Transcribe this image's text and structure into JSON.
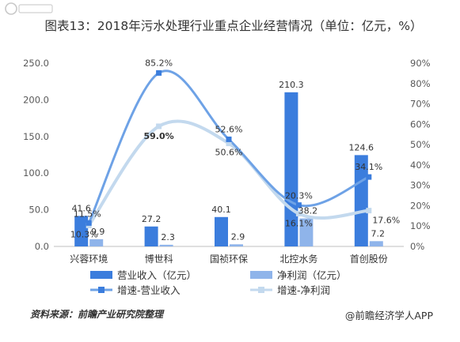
{
  "title": "图表13：2018年污水处理行业重点企业经营情况（单位：亿元，%）",
  "source": "资料来源：前瞻产业研究院整理",
  "brand": "@前瞻经济学人APP",
  "colors": {
    "revenue_bar": "#3b7ddd",
    "profit_bar": "#8fb4ea",
    "revenue_growth": "#6ea2e6",
    "profit_growth": "#c3d9ee"
  },
  "chart_data": {
    "type": "bar",
    "title": "图表13：2018年污水处理行业重点企业经营情况（单位：亿元，%）",
    "categories": [
      "兴蓉环境",
      "博世科",
      "国祯环保",
      "北控水务",
      "首创股份"
    ],
    "ylim": [
      0,
      250
    ],
    "y_ticks": [
      "0.0",
      "50.0",
      "100.0",
      "150.0",
      "200.0",
      "250.0"
    ],
    "y2lim": [
      0,
      90
    ],
    "y2_ticks": [
      "0%",
      "10%",
      "20%",
      "30%",
      "40%",
      "50%",
      "60%",
      "70%",
      "80%",
      "90%"
    ],
    "series": [
      {
        "name": "营业收入（亿元）",
        "kind": "bar",
        "axis": "left",
        "values": [
          41.6,
          27.2,
          40.1,
          210.3,
          124.6
        ],
        "labels": [
          "41.6",
          "27.2",
          "40.1",
          "210.3",
          "124.6"
        ]
      },
      {
        "name": "净利润（亿元）",
        "kind": "bar",
        "axis": "left",
        "values": [
          9.9,
          2.3,
          2.9,
          38.2,
          7.2
        ],
        "labels": [
          "9.9",
          "2.3",
          "2.9",
          "38.2",
          "7.2"
        ]
      },
      {
        "name": "增速-营业收入",
        "kind": "line",
        "axis": "right",
        "values": [
          11.5,
          85.2,
          52.6,
          20.3,
          34.1
        ],
        "labels": [
          "11.5%",
          "85.2%",
          "52.6%",
          "20.3%",
          "34.1%"
        ]
      },
      {
        "name": "增速-净利润",
        "kind": "line",
        "axis": "right",
        "values": [
          10.3,
          59.0,
          50.6,
          16.1,
          17.6
        ],
        "labels": [
          "10.3%",
          "59.0%",
          "50.6%",
          "16.1%",
          "17.6%"
        ]
      }
    ],
    "legend_position": "bottom",
    "grid": false
  }
}
